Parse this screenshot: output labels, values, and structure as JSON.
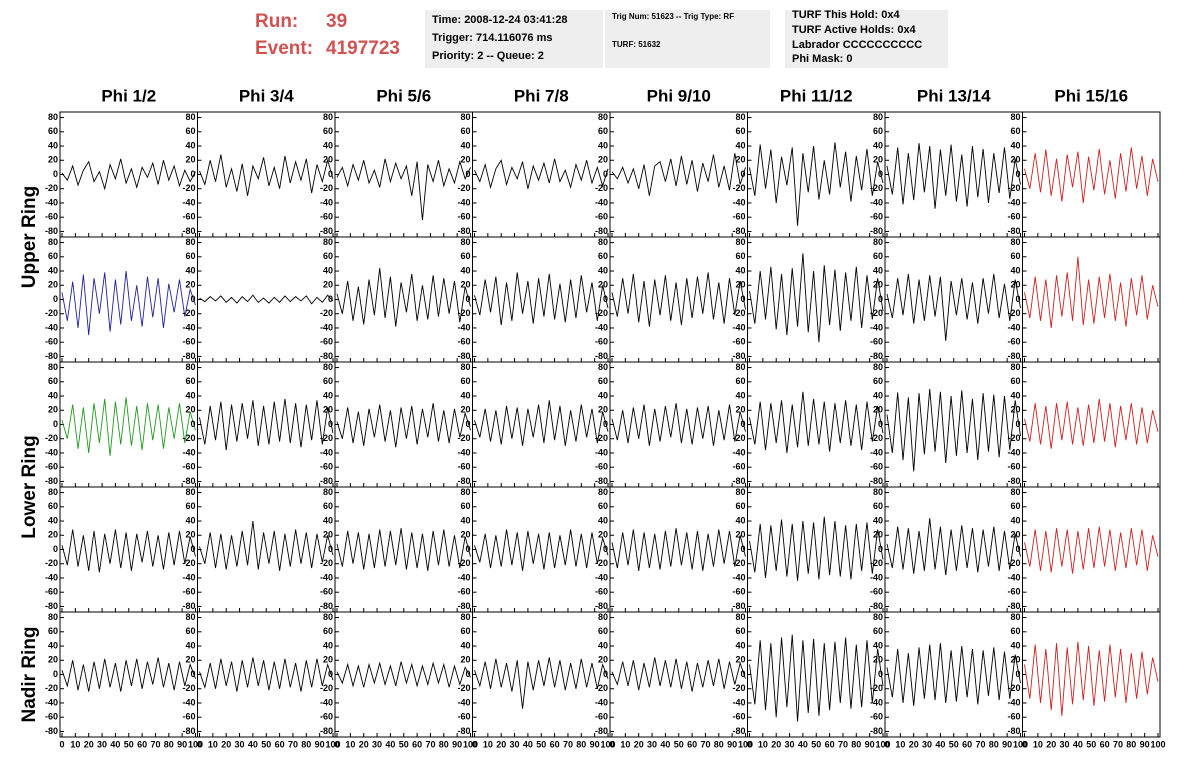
{
  "header": {
    "run_label": "Run:",
    "run": "39",
    "event_label": "Event:",
    "event": "4197723"
  },
  "info": {
    "box1": [
      "Time: 2008-12-24 03:41:28",
      "Trigger: 714.116076 ms",
      "Priority: 2 -- Queue: 2"
    ],
    "box2": [
      "Trig Num: 51623 -- Trig Type: RF",
      "TURF: 51632"
    ],
    "box3": [
      "TURF This Hold: 0x4",
      "TURF Active Holds: 0x4",
      "Labrador CCCCCCCCCC",
      "Phi Mask: 0"
    ]
  },
  "chart_data": {
    "type": "line",
    "column_titles": [
      "Phi 1/2",
      "Phi 3/4",
      "Phi 5/6",
      "Phi 7/8",
      "Phi 9/10",
      "Phi 11/12",
      "Phi 13/14",
      "Phi 15/16"
    ],
    "row_titles": [
      "Upper Ring",
      "Lower Ring",
      "Nadir Ring"
    ],
    "xlim": [
      0,
      100
    ],
    "xticks": [
      0,
      10,
      20,
      30,
      40,
      50,
      60,
      70,
      80,
      90,
      100
    ],
    "ylim": [
      -85,
      85
    ],
    "yticks": [
      80,
      60,
      40,
      20,
      0,
      -20,
      -40,
      -60,
      -80
    ],
    "x": [
      0,
      4,
      8,
      12,
      16,
      20,
      24,
      28,
      32,
      36,
      40,
      44,
      48,
      52,
      56,
      60,
      64,
      68,
      72,
      76,
      80,
      84,
      88,
      92,
      96,
      100
    ],
    "panels": [
      {
        "color": "#000000",
        "values": [
          2,
          -8,
          12,
          -15,
          6,
          18,
          -10,
          4,
          -20,
          14,
          -6,
          22,
          -12,
          8,
          -18,
          10,
          -4,
          16,
          -14,
          20,
          -8,
          12,
          -16,
          6,
          -10,
          4
        ]
      },
      {
        "color": "#000000",
        "values": [
          5,
          -14,
          20,
          -10,
          28,
          -18,
          8,
          -24,
          15,
          -30,
          12,
          -6,
          24,
          -16,
          10,
          -20,
          26,
          -12,
          18,
          -8,
          22,
          -26,
          14,
          -10,
          20,
          -6
        ]
      },
      {
        "color": "#000000",
        "values": [
          -4,
          10,
          -16,
          14,
          -8,
          20,
          -12,
          6,
          -18,
          22,
          -10,
          16,
          -6,
          12,
          -30,
          18,
          -64,
          14,
          -10,
          20,
          -16,
          8,
          -12,
          18,
          -6,
          10
        ]
      },
      {
        "color": "#000000",
        "values": [
          6,
          -10,
          14,
          -18,
          8,
          20,
          -14,
          10,
          -6,
          18,
          -20,
          12,
          -8,
          16,
          -12,
          22,
          -10,
          6,
          -18,
          14,
          -8,
          20,
          -12,
          10,
          -16,
          8
        ]
      },
      {
        "color": "#000000",
        "values": [
          4,
          -6,
          10,
          -12,
          8,
          -20,
          14,
          -30,
          12,
          18,
          -10,
          22,
          -16,
          26,
          -14,
          20,
          -24,
          16,
          -10,
          28,
          -18,
          12,
          -22,
          30,
          -14,
          10
        ]
      },
      {
        "color": "#000000",
        "values": [
          10,
          -30,
          42,
          -20,
          35,
          -40,
          25,
          -15,
          38,
          -72,
          30,
          -25,
          40,
          -35,
          20,
          -28,
          45,
          -18,
          32,
          -38,
          26,
          -22,
          36,
          -30,
          18,
          -12
        ]
      },
      {
        "color": "#000000",
        "values": [
          12,
          -28,
          38,
          -42,
          30,
          -36,
          44,
          -25,
          40,
          -48,
          35,
          -30,
          42,
          -38,
          28,
          -45,
          40,
          -32,
          36,
          -40,
          30,
          -26,
          38,
          -34,
          22,
          -14
        ]
      },
      {
        "color": "#cc2222",
        "values": [
          8,
          -20,
          30,
          -25,
          35,
          -30,
          22,
          -38,
          28,
          -18,
          32,
          -40,
          25,
          -22,
          36,
          -28,
          20,
          -34,
          30,
          -24,
          38,
          -20,
          26,
          -30,
          22,
          -10
        ]
      },
      {
        "color": "#222299",
        "values": [
          10,
          -30,
          25,
          -40,
          35,
          -50,
          30,
          -20,
          38,
          -45,
          28,
          -35,
          40,
          -30,
          20,
          -38,
          32,
          -25,
          30,
          -40,
          22,
          -18,
          28,
          -24,
          14,
          -8
        ]
      },
      {
        "color": "#000000",
        "values": [
          2,
          -3,
          4,
          -2,
          5,
          -4,
          3,
          -5,
          4,
          -3,
          6,
          -4,
          2,
          -5,
          3,
          -4,
          5,
          -3,
          4,
          -2,
          5,
          -6,
          3,
          -4,
          6,
          -2
        ]
      },
      {
        "color": "#000000",
        "values": [
          8,
          -20,
          26,
          -30,
          18,
          -35,
          28,
          -22,
          44,
          -26,
          32,
          -38,
          24,
          -18,
          36,
          -30,
          20,
          -28,
          34,
          -24,
          30,
          -20,
          26,
          -32,
          18,
          -10
        ]
      },
      {
        "color": "#000000",
        "values": [
          6,
          -22,
          28,
          -18,
          32,
          -36,
          24,
          -30,
          38,
          -20,
          26,
          -34,
          30,
          -24,
          36,
          -28,
          22,
          -32,
          28,
          -26,
          34,
          -18,
          24,
          -30,
          20,
          -12
        ]
      },
      {
        "color": "#000000",
        "values": [
          10,
          -24,
          30,
          -20,
          36,
          -32,
          26,
          -38,
          28,
          -22,
          34,
          -30,
          24,
          -36,
          30,
          -26,
          32,
          -20,
          38,
          -28,
          24,
          -34,
          30,
          -22,
          26,
          -14
        ]
      },
      {
        "color": "#000000",
        "values": [
          12,
          -34,
          40,
          -28,
          46,
          -42,
          36,
          -50,
          44,
          -38,
          65,
          -46,
          40,
          -60,
          48,
          -36,
          42,
          -44,
          38,
          -30,
          46,
          -40,
          34,
          -28,
          30,
          -16
        ]
      },
      {
        "color": "#000000",
        "values": [
          8,
          -26,
          30,
          -22,
          36,
          -34,
          28,
          -30,
          34,
          -24,
          32,
          -58,
          26,
          -22,
          30,
          -28,
          24,
          -34,
          30,
          -20,
          36,
          -26,
          22,
          -30,
          28,
          -12
        ]
      },
      {
        "color": "#cc2222",
        "values": [
          10,
          -26,
          32,
          -30,
          28,
          -40,
          34,
          -24,
          38,
          -30,
          60,
          -36,
          28,
          -34,
          32,
          -26,
          36,
          -30,
          24,
          -38,
          30,
          -22,
          34,
          -28,
          20,
          -10
        ]
      },
      {
        "color": "#229922",
        "values": [
          6,
          -20,
          28,
          -34,
          24,
          -40,
          30,
          -26,
          36,
          -44,
          32,
          -28,
          38,
          -30,
          26,
          -36,
          30,
          -22,
          28,
          -34,
          24,
          -20,
          30,
          -26,
          18,
          -8
        ]
      },
      {
        "color": "#000000",
        "values": [
          10,
          -28,
          26,
          -22,
          32,
          -36,
          28,
          -24,
          30,
          -20,
          34,
          -30,
          26,
          -28,
          32,
          -24,
          36,
          -26,
          30,
          -32,
          28,
          -22,
          34,
          -28,
          24,
          -12
        ]
      },
      {
        "color": "#000000",
        "values": [
          4,
          -20,
          24,
          -26,
          18,
          -30,
          22,
          -18,
          28,
          -24,
          20,
          -32,
          24,
          -20,
          26,
          -28,
          22,
          -18,
          30,
          -24,
          20,
          -26,
          22,
          -18,
          16,
          -8
        ]
      },
      {
        "color": "#000000",
        "values": [
          6,
          -18,
          22,
          -24,
          20,
          -28,
          26,
          -20,
          24,
          -30,
          22,
          -18,
          28,
          -26,
          34,
          -22,
          26,
          -30,
          20,
          -24,
          28,
          -18,
          22,
          -26,
          18,
          -10
        ]
      },
      {
        "color": "#000000",
        "values": [
          8,
          -22,
          20,
          -26,
          24,
          -20,
          28,
          -30,
          22,
          -24,
          26,
          -18,
          30,
          -26,
          22,
          -28,
          24,
          -20,
          26,
          -30,
          20,
          -22,
          28,
          -24,
          18,
          -10
        ]
      },
      {
        "color": "#000000",
        "values": [
          10,
          -28,
          32,
          -36,
          30,
          -26,
          34,
          -40,
          28,
          -32,
          46,
          -30,
          36,
          -28,
          32,
          -38,
          30,
          -26,
          34,
          -30,
          28,
          -36,
          32,
          -24,
          26,
          -12
        ]
      },
      {
        "color": "#000000",
        "values": [
          14,
          -40,
          45,
          -50,
          38,
          -66,
          44,
          -42,
          50,
          -38,
          46,
          -54,
          40,
          -44,
          48,
          -40,
          36,
          -50,
          44,
          -38,
          42,
          -46,
          40,
          -36,
          34,
          -16
        ]
      },
      {
        "color": "#cc2222",
        "values": [
          8,
          -24,
          30,
          -28,
          26,
          -34,
          30,
          -22,
          32,
          -28,
          24,
          -30,
          28,
          -26,
          36,
          -24,
          30,
          -32,
          26,
          -22,
          30,
          -28,
          24,
          -26,
          20,
          -10
        ]
      },
      {
        "color": "#000000",
        "values": [
          6,
          -22,
          28,
          -24,
          20,
          -30,
          26,
          -32,
          22,
          -20,
          28,
          -26,
          24,
          -30,
          22,
          -18,
          26,
          -24,
          20,
          -28,
          24,
          -22,
          26,
          -20,
          18,
          -10
        ]
      },
      {
        "color": "#000000",
        "values": [
          4,
          -20,
          24,
          -26,
          22,
          -28,
          20,
          -24,
          26,
          -22,
          40,
          -28,
          24,
          -20,
          26,
          -30,
          22,
          -24,
          28,
          -20,
          24,
          -26,
          22,
          -18,
          20,
          -8
        ]
      },
      {
        "color": "#000000",
        "values": [
          8,
          -24,
          26,
          -20,
          24,
          -28,
          22,
          -26,
          28,
          -24,
          26,
          -22,
          30,
          -28,
          24,
          -26,
          22,
          -30,
          26,
          -22,
          28,
          -24,
          20,
          -26,
          18,
          -10
        ]
      },
      {
        "color": "#000000",
        "values": [
          6,
          -18,
          22,
          -26,
          20,
          -24,
          28,
          -22,
          24,
          -30,
          26,
          -20,
          22,
          -28,
          24,
          -26,
          20,
          -22,
          28,
          -24,
          22,
          -26,
          24,
          -20,
          16,
          -8
        ]
      },
      {
        "color": "#000000",
        "values": [
          10,
          -26,
          24,
          -22,
          28,
          -30,
          24,
          -26,
          22,
          -28,
          26,
          -24,
          30,
          -22,
          24,
          -28,
          26,
          -30,
          22,
          -24,
          28,
          -20,
          26,
          -24,
          20,
          -10
        ]
      },
      {
        "color": "#000000",
        "values": [
          12,
          -32,
          36,
          -40,
          34,
          -30,
          42,
          -38,
          36,
          -44,
          40,
          -34,
          38,
          -42,
          46,
          -36,
          40,
          -38,
          34,
          -42,
          36,
          -30,
          38,
          -34,
          28,
          -14
        ]
      },
      {
        "color": "#000000",
        "values": [
          8,
          -26,
          32,
          -28,
          30,
          -34,
          26,
          -30,
          44,
          -28,
          32,
          -36,
          28,
          -30,
          34,
          -26,
          30,
          -32,
          28,
          -24,
          32,
          -30,
          26,
          -28,
          22,
          -10
        ]
      },
      {
        "color": "#cc2222",
        "values": [
          10,
          -24,
          28,
          -30,
          26,
          -32,
          30,
          -24,
          28,
          -34,
          26,
          -28,
          30,
          -26,
          32,
          -24,
          28,
          -30,
          24,
          -26,
          30,
          -22,
          28,
          -30,
          20,
          -10
        ]
      },
      {
        "color": "#000000",
        "values": [
          6,
          -16,
          20,
          -22,
          14,
          -24,
          18,
          -20,
          22,
          -18,
          16,
          -24,
          20,
          -16,
          22,
          -20,
          18,
          -14,
          24,
          -18,
          16,
          -22,
          18,
          -16,
          14,
          -6
        ]
      },
      {
        "color": "#000000",
        "values": [
          4,
          -18,
          16,
          -20,
          22,
          -16,
          18,
          -24,
          20,
          -18,
          24,
          -16,
          20,
          -22,
          18,
          -20,
          22,
          -18,
          16,
          -24,
          20,
          -18,
          22,
          -16,
          14,
          -8
        ]
      },
      {
        "color": "#000000",
        "values": [
          4,
          -12,
          14,
          -16,
          12,
          -18,
          14,
          -12,
          16,
          -14,
          12,
          -16,
          18,
          -12,
          14,
          -16,
          12,
          -14,
          16,
          -12,
          14,
          -18,
          12,
          -14,
          10,
          -4
        ]
      },
      {
        "color": "#000000",
        "values": [
          6,
          -16,
          18,
          -20,
          22,
          -18,
          16,
          -24,
          20,
          -48,
          18,
          -22,
          20,
          -16,
          24,
          -18,
          20,
          -22,
          16,
          -20,
          22,
          -18,
          16,
          -20,
          14,
          -6
        ]
      },
      {
        "color": "#000000",
        "values": [
          4,
          -14,
          18,
          -16,
          20,
          -22,
          16,
          -18,
          24,
          -16,
          20,
          -18,
          22,
          -20,
          18,
          -24,
          16,
          -18,
          20,
          -16,
          22,
          -20,
          18,
          -14,
          16,
          -6
        ]
      },
      {
        "color": "#000000",
        "values": [
          14,
          -42,
          48,
          -50,
          44,
          -60,
          52,
          -46,
          56,
          -66,
          48,
          -54,
          50,
          -58,
          44,
          -50,
          46,
          -40,
          52,
          -48,
          42,
          -46,
          48,
          -40,
          36,
          -16
        ]
      },
      {
        "color": "#000000",
        "values": [
          10,
          -32,
          36,
          -40,
          30,
          -44,
          38,
          -34,
          42,
          -36,
          44,
          -40,
          34,
          -38,
          40,
          -32,
          36,
          -42,
          34,
          -30,
          38,
          -36,
          32,
          -34,
          28,
          -12
        ]
      },
      {
        "color": "#cc2222",
        "values": [
          14,
          -34,
          42,
          -40,
          36,
          -50,
          44,
          -58,
          38,
          -42,
          46,
          -36,
          40,
          -44,
          34,
          -38,
          42,
          -32,
          36,
          -40,
          30,
          -34,
          32,
          -28,
          24,
          -10
        ]
      }
    ]
  }
}
